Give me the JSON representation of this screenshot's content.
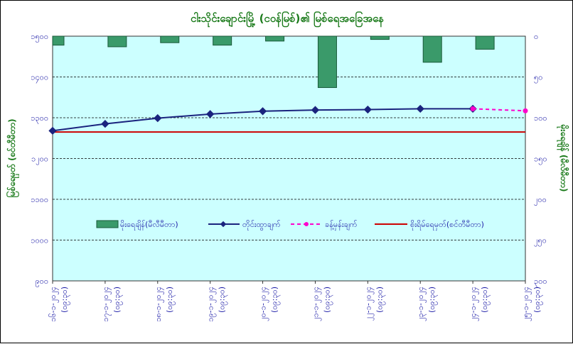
{
  "chart_data": {
    "type": "bar+line",
    "title": "ငါးသိုင်းချောင်းမြို့ (ငဝန်မြစ်)၏ မြစ်ရေအခြေအနေ",
    "ylabel_left": "မြစ်ရေမှတ် (စင်တီမီတာ)",
    "ylabel_right": "မိုးရေချိန် (မီလီမီတာ)",
    "xlabel": "",
    "categories": [
      "၁၆-၁-၂၀၂၄ (၀၉:၃၀)",
      "၁၇-၁-၂၀၂၄ (၀၉:၃၀)",
      "၁၈-၁-၂၀၂၄ (၀၉:၃၀)",
      "၁၉-၁-၂၀၂၄ (၀၉:၃၀)",
      "၂၀-၁-၂၀၂၄ (၀၉:၃၀)",
      "၂၁-၁-၂၀၂၄ (၀၉:၃၀)",
      "၂၂-၁-၂၀၂၄ (၀၉:၃၀)",
      "၂၃-၁-၂၀၂၄ (၀၉:၃၀)",
      "၂၄-၁-၂၀၂၄ (၀၉:၃၀)",
      "၂၅-၁-၂၀၂၄ (၀၉:၃၀)"
    ],
    "ylim_left": [
      900,
      1500
    ],
    "yticks_left": [
      "၉၀၀",
      "၁၀၀၀",
      "၁၁၀၀",
      "၁၂၀၀",
      "၁၃၀၀",
      "၁၄၀၀",
      "၁၅၀၀"
    ],
    "ylim_right": [
      0,
      300
    ],
    "yticks_right": [
      "၀",
      "၅၀",
      "၁၀၀",
      "၁၅၀",
      "၂၀၀",
      "၂၅၀",
      "၃၀၀"
    ],
    "series": [
      {
        "name": "မိုးရေချိန်(မီလီမီတာ)",
        "kind": "bar",
        "axis": "right",
        "color": "#3a9a6a",
        "values": [
          11,
          13,
          8,
          11,
          6,
          63,
          4,
          32,
          16,
          null
        ]
      },
      {
        "name": "တိုင်းထွာချက်",
        "kind": "line",
        "axis": "left",
        "color": "#1a237e",
        "values": [
          1268,
          1285,
          1299,
          1309,
          1316,
          1319,
          1320,
          1322,
          1322,
          null
        ]
      },
      {
        "name": "ခန့်မှန်းချက်",
        "kind": "line-dashed",
        "axis": "left",
        "color": "#ff00cc",
        "values": [
          null,
          null,
          null,
          null,
          null,
          null,
          null,
          null,
          1322,
          1317
        ]
      },
      {
        "name": "စိုးရိမ်ရေမှတ်(စင်တီမီတာ)",
        "kind": "hline",
        "axis": "left",
        "color": "#cc0000",
        "value": 1265
      }
    ],
    "grid": "horizontal dashed",
    "legend": "inside-bottom",
    "background": "#ccffff"
  }
}
